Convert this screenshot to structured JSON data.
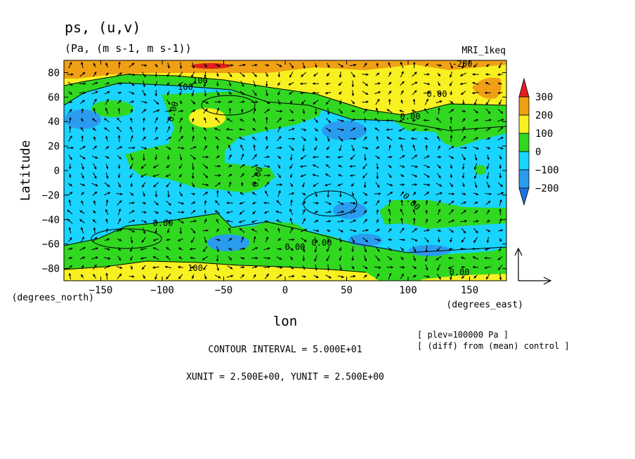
{
  "chart_data": {
    "type": "heatmap",
    "title": "ps, (u,v)",
    "subtitle": "(Pa, (m s-1, m s-1))",
    "model": "MRI_1keq",
    "xlabel": "lon",
    "ylabel": "Latitude",
    "x_unit": "(degrees_east)",
    "y_unit": "(degrees_north)",
    "xlim": [
      -180,
      180
    ],
    "ylim": [
      -90,
      90
    ],
    "x_ticks": [
      -150,
      -100,
      -50,
      0,
      50,
      100,
      150
    ],
    "x_tick_labels": [
      "−150",
      "−100",
      "−50",
      "0",
      "50",
      "100",
      "150"
    ],
    "y_ticks": [
      80,
      60,
      40,
      20,
      0,
      -20,
      -40,
      -60,
      -80
    ],
    "y_tick_labels": [
      "80",
      "60",
      "40",
      "20",
      "0",
      "−20",
      "−40",
      "−60",
      "−80"
    ],
    "colorbar": {
      "levels": [
        300,
        200,
        100,
        0,
        -100,
        -200
      ],
      "level_labels": [
        "300",
        "200",
        "100",
        "0",
        "−100",
        "−200"
      ],
      "bands": [
        {
          "range": [
            200,
            300
          ],
          "color": "#f0a014"
        },
        {
          "range": [
            100,
            200
          ],
          "color": "#f8f020"
        },
        {
          "range": [
            0,
            100
          ],
          "color": "#30d820"
        },
        {
          "range": [
            -100,
            0
          ],
          "color": "#18d4ff"
        },
        {
          "range": [
            -200,
            -100
          ],
          "color": "#2a9cf0"
        }
      ],
      "above_max_color": "#e02020",
      "below_min_color": "#2070e0"
    },
    "contour_labels": [
      "-200",
      "100",
      "100",
      "0.00",
      "0.00",
      "0.00",
      "0.00",
      "0.00",
      "0.00",
      "0.00",
      "0.00",
      "100",
      "0.00"
    ],
    "annotations": {
      "plev": "[ plev=100000 Pa ]",
      "diff": "[ (diff) from (mean) control ]",
      "contour_interval": "CONTOUR INTERVAL = 5.000E+01",
      "units": "XUNIT = 2.500E+00, YUNIT = 2.500E+00"
    },
    "grid": false,
    "legend_position": "right"
  }
}
